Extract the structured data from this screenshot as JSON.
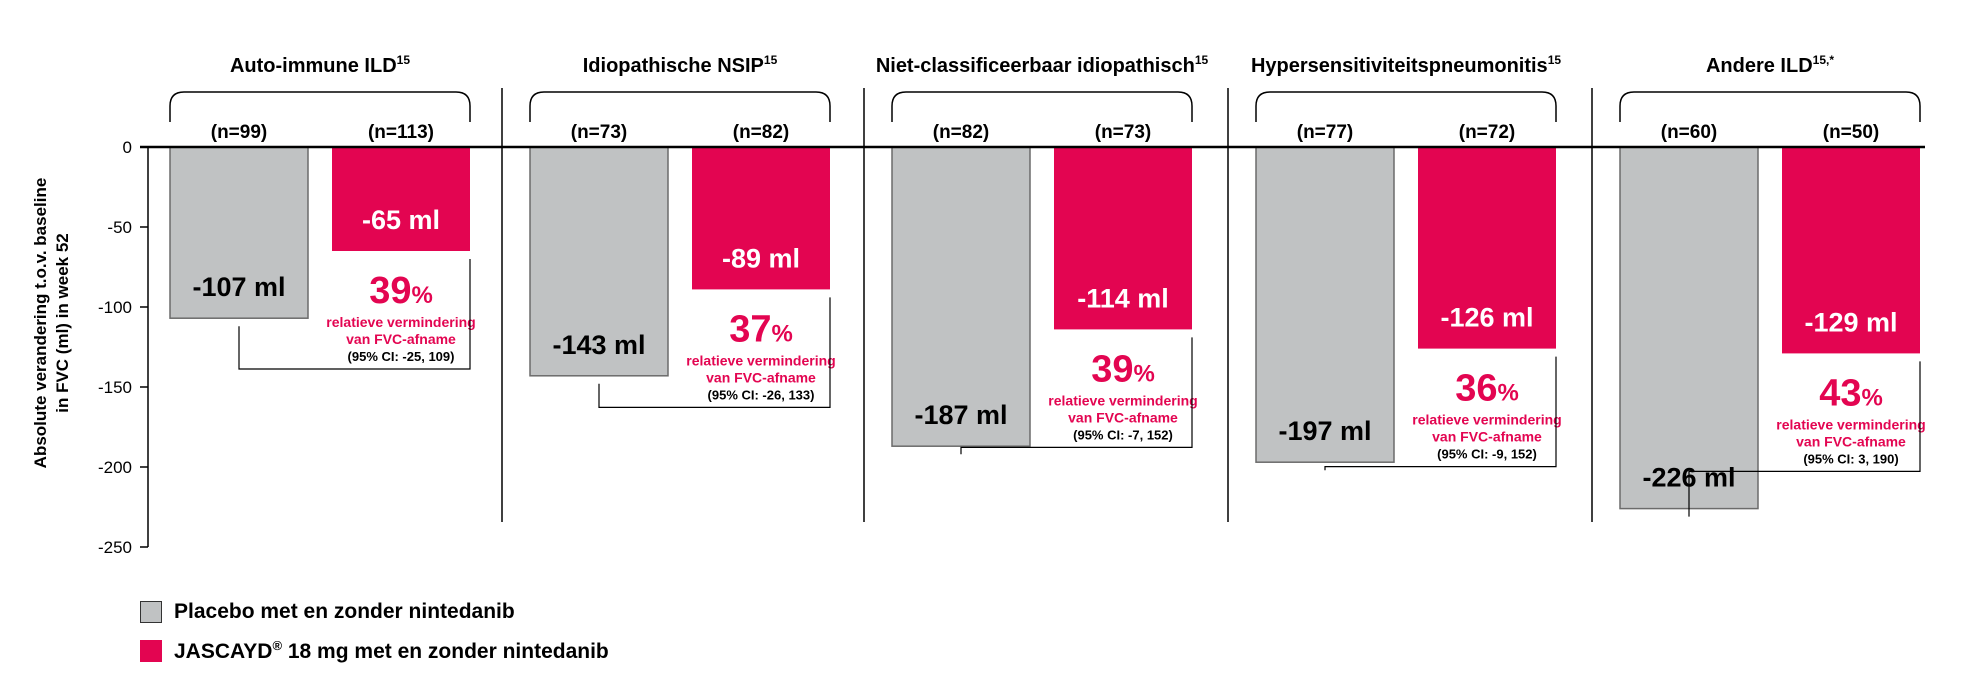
{
  "chart_data": {
    "type": "bar",
    "ylabel_line1": "Absolute verandering t.o.v. baseline",
    "ylabel_line2": "in FVC (ml) in week 52",
    "ylim": [
      -250,
      0
    ],
    "yticks": [
      0,
      -50,
      -100,
      -150,
      -200,
      -250
    ],
    "grid": false,
    "colors": {
      "placebo": "#c0c2c3",
      "jascayd": "#e30551",
      "text_accent": "#e30551"
    },
    "groups": [
      {
        "title": "Auto-immune ILD",
        "title_sup": "15",
        "placebo": {
          "n": "(n=99)",
          "value": -107,
          "label": "-107 ml"
        },
        "jascayd": {
          "n": "(n=113)",
          "value": -65,
          "label": "-65 ml"
        },
        "pct": "39",
        "pct_sign": "%",
        "rel_line1": "relatieve vermindering",
        "rel_line2": "van FVC-afname",
        "ci": "(95% CI: -25, 109)"
      },
      {
        "title": "Idiopathische NSIP",
        "title_sup": "15",
        "placebo": {
          "n": "(n=73)",
          "value": -143,
          "label": "-143 ml"
        },
        "jascayd": {
          "n": "(n=82)",
          "value": -89,
          "label": "-89 ml"
        },
        "pct": "37",
        "pct_sign": "%",
        "rel_line1": "relatieve vermindering",
        "rel_line2": "van FVC-afname",
        "ci": "(95% CI: -26, 133)"
      },
      {
        "title": "Niet-classificeerbaar idiopathisch",
        "title_sup": "15",
        "placebo": {
          "n": "(n=82)",
          "value": -187,
          "label": "-187 ml"
        },
        "jascayd": {
          "n": "(n=73)",
          "value": -114,
          "label": "-114 ml"
        },
        "pct": "39",
        "pct_sign": "%",
        "rel_line1": "relatieve vermindering",
        "rel_line2": "van FVC-afname",
        "ci": "(95% CI: -7, 152)"
      },
      {
        "title": "Hypersensitiviteitspneumonitis",
        "title_sup": "15",
        "placebo": {
          "n": "(n=77)",
          "value": -197,
          "label": "-197 ml"
        },
        "jascayd": {
          "n": "(n=72)",
          "value": -126,
          "label": "-126 ml"
        },
        "pct": "36",
        "pct_sign": "%",
        "rel_line1": "relatieve vermindering",
        "rel_line2": "van FVC-afname",
        "ci": "(95% CI: -9, 152)"
      },
      {
        "title": "Andere ILD",
        "title_sup": "15,*",
        "placebo": {
          "n": "(n=60)",
          "value": -226,
          "label": "-226 ml"
        },
        "jascayd": {
          "n": "(n=50)",
          "value": -129,
          "label": "-129 ml"
        },
        "pct": "43",
        "pct_sign": "%",
        "rel_line1": "relatieve vermindering",
        "rel_line2": "van FVC-afname",
        "ci": "(95% CI: 3, 190)"
      }
    ],
    "legend": {
      "placement": "bottom-left",
      "placebo_label": "Placebo met en zonder nintedanib",
      "jascayd_label_main": "JASCAYD",
      "jascayd_label_sup": "®",
      "jascayd_label_rest": " 18 mg met en zonder nintedanib"
    }
  }
}
